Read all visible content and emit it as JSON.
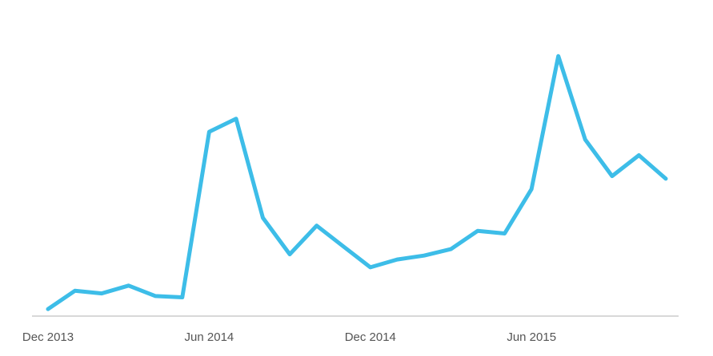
{
  "chart_data": {
    "type": "line",
    "title": "",
    "xlabel": "",
    "ylabel": "",
    "x_tick_labels": [
      "Dec 2013",
      "Jun 2014",
      "Dec 2014",
      "Jun 2015"
    ],
    "x_tick_indices": [
      0,
      6,
      12,
      18
    ],
    "x": [
      "Dec 2013",
      "Jan 2014",
      "Feb 2014",
      "Mar 2014",
      "Apr 2014",
      "May 2014",
      "Jun 2014",
      "Jul 2014",
      "Aug 2014",
      "Sep 2014",
      "Oct 2014",
      "Nov 2014",
      "Dec 2014",
      "Jan 2015",
      "Feb 2015",
      "Mar 2015",
      "Apr 2015",
      "May 2015",
      "Jun 2015",
      "Jul 2015",
      "Aug 2015",
      "Sep 2015",
      "Oct 2015",
      "Nov 2015"
    ],
    "series": [
      {
        "values": [
          3,
          10,
          9,
          12,
          8,
          7.5,
          71,
          76,
          38,
          24,
          35,
          27,
          19,
          22,
          23.5,
          26,
          33,
          32,
          49,
          100,
          68,
          54,
          62,
          53
        ]
      }
    ],
    "ylim": [
      0,
      105
    ],
    "grid": false,
    "legend": "none",
    "line_color": "#3dbde8",
    "axis_color": "#cccccc"
  }
}
